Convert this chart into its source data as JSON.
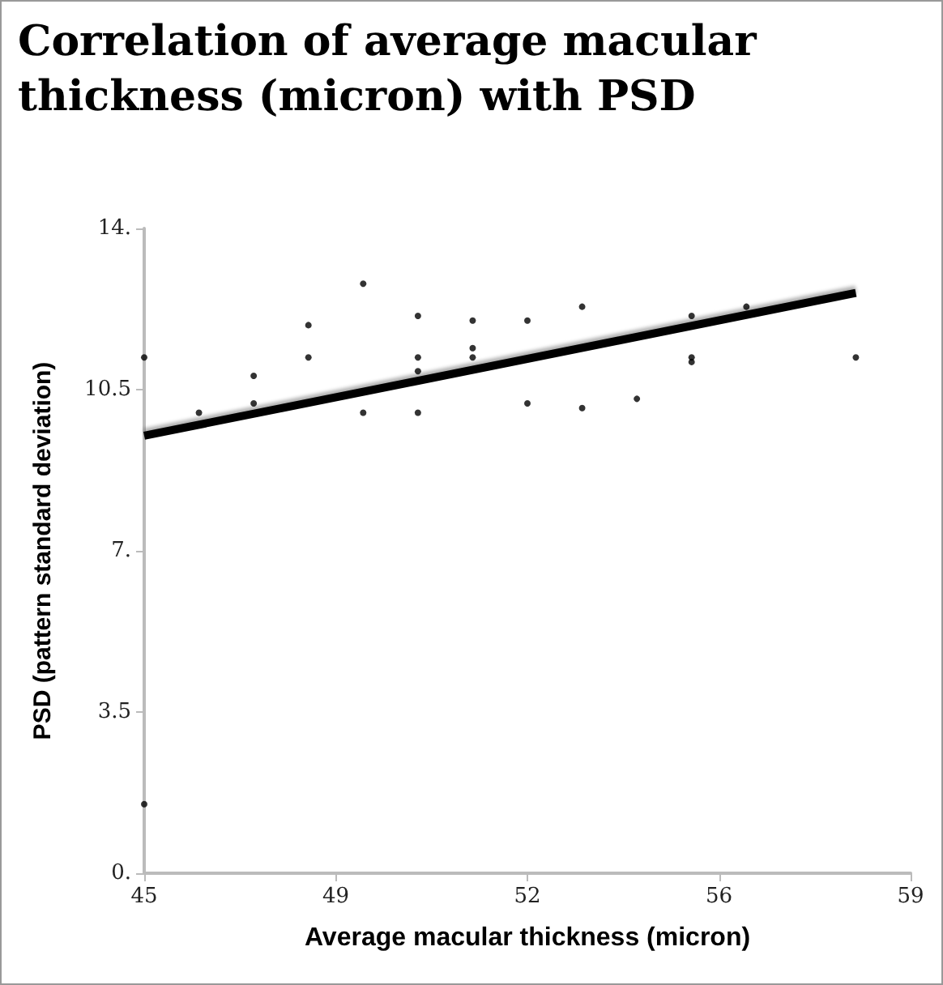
{
  "chart_data": {
    "type": "scatter",
    "title": "Correlation of average macular thickness (micron) with PSD",
    "xlabel": "Average macular thickness (micron)",
    "ylabel": "PSD (pattern standard deviation)",
    "xlim": [
      45,
      59
    ],
    "xticks": [
      45,
      {
        "value": 48.5,
        "label": "49"
      },
      52,
      {
        "value": 55.5,
        "label": "56"
      },
      59
    ],
    "ylim": [
      0,
      14
    ],
    "yticks": [
      {
        "value": 0,
        "label": "0."
      },
      3.5,
      {
        "value": 7,
        "label": "7."
      },
      10.5,
      {
        "value": 14,
        "label": "14."
      }
    ],
    "grid": false,
    "series": [
      {
        "marker": "circle",
        "color": "#000000",
        "x": [
          45,
          45,
          46,
          47,
          47,
          48,
          48,
          49,
          49,
          50,
          50,
          50,
          50,
          51,
          51,
          51,
          52,
          52,
          53,
          53,
          54,
          55,
          55,
          55,
          56,
          58
        ],
        "values": [
          11.2,
          1.5,
          10.0,
          10.8,
          10.2,
          11.9,
          11.2,
          12.8,
          10.0,
          12.1,
          11.2,
          10.9,
          10.0,
          12.0,
          11.4,
          11.2,
          12.0,
          10.2,
          12.3,
          10.1,
          10.3,
          12.1,
          11.2,
          11.1,
          12.3,
          11.2
        ]
      },
      {
        "type": "line",
        "marker": "none",
        "color": "#000000",
        "x": [
          45,
          58
        ],
        "values": [
          9.5,
          12.6
        ]
      }
    ]
  }
}
